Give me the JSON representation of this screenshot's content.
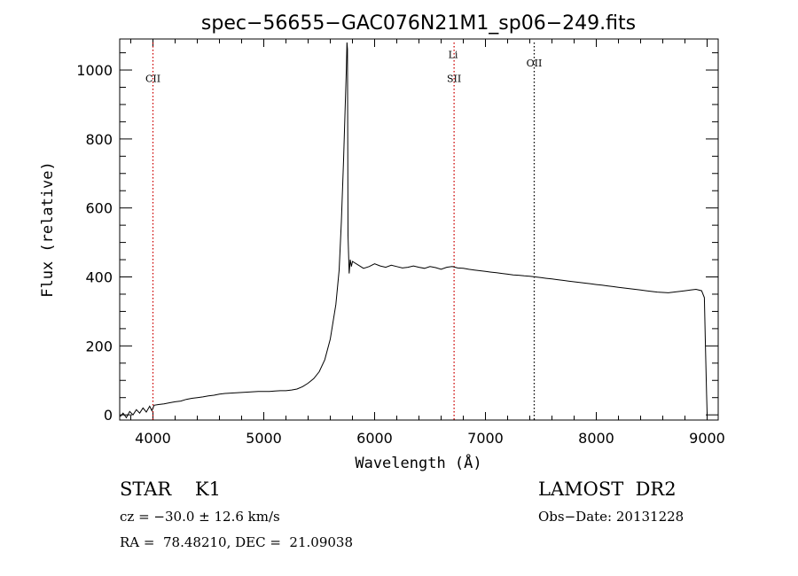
{
  "chart_data": {
    "type": "line",
    "title": "spec−56655−GAC076N21M1_sp06−249.fits",
    "xlabel": "Wavelength (Å)",
    "ylabel": "Flux (relative)",
    "xlim": [
      3700,
      9100
    ],
    "ylim": [
      -15,
      1090
    ],
    "x_ticks": [
      4000,
      5000,
      6000,
      7000,
      8000,
      9000
    ],
    "y_ticks": [
      0,
      200,
      400,
      600,
      800,
      1000
    ],
    "grid": false,
    "series": [
      {
        "color": "#000000",
        "points": [
          [
            3705,
            -5
          ],
          [
            3730,
            5
          ],
          [
            3760,
            -8
          ],
          [
            3790,
            10
          ],
          [
            3820,
            0
          ],
          [
            3850,
            15
          ],
          [
            3880,
            5
          ],
          [
            3910,
            20
          ],
          [
            3940,
            8
          ],
          [
            3970,
            25
          ],
          [
            3990,
            12
          ],
          [
            4010,
            28
          ],
          [
            4050,
            30
          ],
          [
            4100,
            32
          ],
          [
            4150,
            35
          ],
          [
            4200,
            38
          ],
          [
            4250,
            40
          ],
          [
            4300,
            45
          ],
          [
            4350,
            48
          ],
          [
            4400,
            50
          ],
          [
            4450,
            52
          ],
          [
            4500,
            55
          ],
          [
            4550,
            57
          ],
          [
            4600,
            60
          ],
          [
            4650,
            62
          ],
          [
            4700,
            63
          ],
          [
            4750,
            64
          ],
          [
            4800,
            65
          ],
          [
            4850,
            66
          ],
          [
            4900,
            67
          ],
          [
            4950,
            68
          ],
          [
            5000,
            68
          ],
          [
            5050,
            68
          ],
          [
            5100,
            69
          ],
          [
            5150,
            70
          ],
          [
            5200,
            70
          ],
          [
            5250,
            72
          ],
          [
            5300,
            75
          ],
          [
            5350,
            82
          ],
          [
            5400,
            92
          ],
          [
            5450,
            105
          ],
          [
            5500,
            125
          ],
          [
            5550,
            160
          ],
          [
            5600,
            220
          ],
          [
            5650,
            320
          ],
          [
            5680,
            420
          ],
          [
            5700,
            560
          ],
          [
            5720,
            740
          ],
          [
            5735,
            900
          ],
          [
            5745,
            1000
          ],
          [
            5750,
            1080
          ],
          [
            5755,
            1060
          ],
          [
            5760,
            520
          ],
          [
            5770,
            410
          ],
          [
            5780,
            450
          ],
          [
            5790,
            430
          ],
          [
            5800,
            445
          ],
          [
            5850,
            435
          ],
          [
            5900,
            425
          ],
          [
            5950,
            430
          ],
          [
            6000,
            438
          ],
          [
            6050,
            432
          ],
          [
            6100,
            428
          ],
          [
            6150,
            434
          ],
          [
            6200,
            430
          ],
          [
            6250,
            426
          ],
          [
            6300,
            428
          ],
          [
            6350,
            432
          ],
          [
            6400,
            428
          ],
          [
            6450,
            425
          ],
          [
            6500,
            430
          ],
          [
            6550,
            427
          ],
          [
            6600,
            422
          ],
          [
            6650,
            428
          ],
          [
            6700,
            430
          ],
          [
            6750,
            426
          ],
          [
            6800,
            425
          ],
          [
            6850,
            422
          ],
          [
            6900,
            420
          ],
          [
            6950,
            418
          ],
          [
            7000,
            416
          ],
          [
            7050,
            414
          ],
          [
            7100,
            412
          ],
          [
            7150,
            410
          ],
          [
            7200,
            408
          ],
          [
            7250,
            406
          ],
          [
            7300,
            405
          ],
          [
            7350,
            403
          ],
          [
            7400,
            402
          ],
          [
            7450,
            400
          ],
          [
            7500,
            398
          ],
          [
            7550,
            396
          ],
          [
            7600,
            394
          ],
          [
            7650,
            392
          ],
          [
            7700,
            390
          ],
          [
            7750,
            388
          ],
          [
            7800,
            386
          ],
          [
            7850,
            384
          ],
          [
            7900,
            382
          ],
          [
            7950,
            380
          ],
          [
            8000,
            378
          ],
          [
            8050,
            376
          ],
          [
            8100,
            374
          ],
          [
            8150,
            372
          ],
          [
            8200,
            370
          ],
          [
            8250,
            368
          ],
          [
            8300,
            366
          ],
          [
            8350,
            364
          ],
          [
            8400,
            362
          ],
          [
            8450,
            360
          ],
          [
            8500,
            358
          ],
          [
            8550,
            356
          ],
          [
            8600,
            355
          ],
          [
            8650,
            354
          ],
          [
            8700,
            356
          ],
          [
            8750,
            358
          ],
          [
            8800,
            360
          ],
          [
            8850,
            362
          ],
          [
            8900,
            364
          ],
          [
            8950,
            360
          ],
          [
            8975,
            340
          ],
          [
            8985,
            200
          ],
          [
            8995,
            60
          ],
          [
            9000,
            5
          ]
        ]
      }
    ],
    "lines": [
      {
        "label": "CII",
        "x": 4000,
        "color": "#cc0000"
      },
      {
        "label": "SII",
        "x": 6717,
        "color": "#cc0000"
      },
      {
        "label": "OII",
        "x": 7440,
        "color": "#000000"
      }
    ],
    "annotations": [
      {
        "text": "CII",
        "x": 4000,
        "y": 965
      },
      {
        "text": "Li",
        "x": 6708,
        "y": 1035
      },
      {
        "text": "SII",
        "x": 6717,
        "y": 965
      },
      {
        "text": "OII",
        "x": 7440,
        "y": 1010
      }
    ]
  },
  "info": {
    "object": "STAR    K1",
    "survey": "LAMOST  DR2",
    "cz": "cz = −30.0 ± 12.6 km/s",
    "obs_date": "Obs−Date: 20131228",
    "coords": "RA =  78.48210, DEC =  21.09038"
  }
}
